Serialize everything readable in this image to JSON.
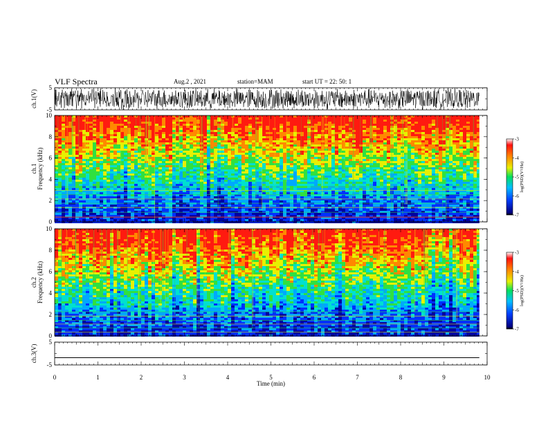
{
  "header": {
    "title": "VLF Spectra",
    "date": "Aug.2 , 2021",
    "station": "station=MAM",
    "start": "start UT = 22: 50: 1"
  },
  "colors": {
    "spectrum": [
      "#0000a0",
      "#0030ff",
      "#00a8ff",
      "#00e0d0",
      "#30e040",
      "#e8f000",
      "#ff8800",
      "#ff1a10"
    ],
    "trace": "#000000"
  },
  "chart_data": {
    "type": "heatmap",
    "xlabel": "Time (min)",
    "xlim": [
      0,
      10
    ],
    "xticks": [
      0,
      1,
      2,
      3,
      4,
      5,
      6,
      7,
      8,
      9,
      10
    ],
    "data_end_min": 9.82,
    "panels": [
      {
        "id": "ch1v",
        "kind": "waveform",
        "ylabel": "ch.1(V)",
        "ylim": [
          -5,
          5
        ],
        "yticks": [
          5,
          -5
        ]
      },
      {
        "id": "ch1",
        "kind": "spectrogram",
        "ylabel_top": "ch.1",
        "ylabel": "Frequency (kHz)",
        "ylim": [
          0,
          10
        ],
        "yticks": [
          0,
          2,
          4,
          6,
          8,
          10
        ],
        "zlim": [
          -7,
          -3
        ],
        "colorbar_ticks": [
          -3,
          -4,
          -5,
          -6,
          -7
        ],
        "colorbar_label": "log(PSD)(V²/Hz)"
      },
      {
        "id": "ch2",
        "kind": "spectrogram",
        "ylabel_top": "ch.2",
        "ylabel": "Frequency (kHz)",
        "ylim": [
          0,
          10
        ],
        "yticks": [
          0,
          2,
          4,
          6,
          8,
          10
        ],
        "zlim": [
          -7,
          -3
        ],
        "colorbar_ticks": [
          -3,
          -4,
          -5,
          -6,
          -7
        ],
        "colorbar_label": "log(PSD)(V²/Hz)"
      },
      {
        "id": "ch3v",
        "kind": "waveform",
        "ylabel": "ch.3(V)",
        "ylim": [
          -5,
          5
        ],
        "yticks": [
          5,
          -5
        ],
        "constant_value": -1.8
      }
    ]
  }
}
